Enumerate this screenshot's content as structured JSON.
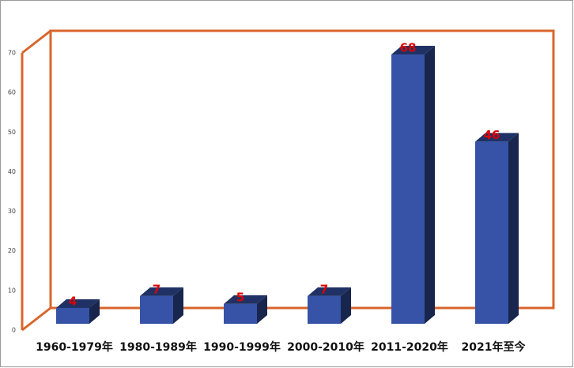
{
  "chart_data": {
    "type": "bar3d",
    "categories": [
      "1960-1979年",
      "1980-1989年",
      "1990-1999年",
      "2000-2010年",
      "2011-2020年",
      "2021年至今"
    ],
    "values": [
      4,
      7,
      5,
      7,
      68,
      46
    ],
    "color": "#3653a8",
    "ylim": [
      0,
      70
    ],
    "yticks": [
      0,
      10,
      20,
      30,
      40,
      50,
      60,
      70
    ],
    "frame_color": "#d9652b",
    "value_label_color": "#e00000"
  }
}
